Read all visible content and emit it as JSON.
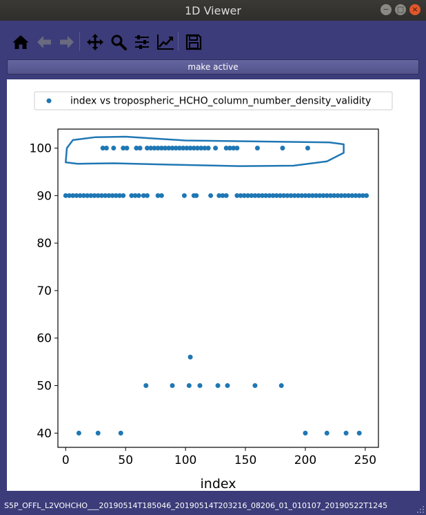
{
  "window": {
    "title": "1D Viewer",
    "minimize_glyph": "−",
    "maximize_glyph": "□",
    "close_glyph": "×"
  },
  "toolbar": {
    "items": [
      {
        "icon": "home-icon",
        "enabled": true
      },
      {
        "icon": "back-arrow-icon",
        "enabled": false
      },
      {
        "icon": "forward-arrow-icon",
        "enabled": false
      },
      {
        "icon": "pan-icon",
        "enabled": true
      },
      {
        "icon": "zoom-icon",
        "enabled": true
      },
      {
        "icon": "configure-subplots-icon",
        "enabled": true
      },
      {
        "icon": "edit-axes-icon",
        "enabled": true
      },
      {
        "icon": "save-icon",
        "enabled": true
      }
    ]
  },
  "make_active_label": "make active",
  "status_text": "S5P_OFFL_L2VOHCHO___20190514T185046_20190514T203216_08206_01_010107_20190522T1245",
  "colors": {
    "window_bg": "#3c3c7a",
    "marker": "#1f77b4",
    "titlebar": "#33322f",
    "close_button": "#e0572a"
  },
  "chart_data": {
    "type": "scatter",
    "legend": "index vs  tropospheric_HCHO_column_number_density_validity",
    "legend_position": "top-center",
    "xlabel": "index",
    "ylabel": "",
    "xlim": [
      -6.5,
      261
    ],
    "ylim": [
      37,
      104
    ],
    "xticks": [
      0,
      50,
      100,
      150,
      200,
      250
    ],
    "yticks": [
      40,
      50,
      60,
      70,
      80,
      90,
      100
    ],
    "grid": false,
    "annotation": "hand-drawn outline around the y=100 points",
    "annotation_outline": [
      [
        0,
        97
      ],
      [
        1,
        100
      ],
      [
        6,
        101.7
      ],
      [
        25,
        102.3
      ],
      [
        50,
        102.4
      ],
      [
        100,
        101.6
      ],
      [
        160,
        101.4
      ],
      [
        220,
        101.2
      ],
      [
        232,
        100.8
      ],
      [
        232,
        99
      ],
      [
        218,
        97.2
      ],
      [
        190,
        96.3
      ],
      [
        145,
        96.2
      ],
      [
        90,
        96.5
      ],
      [
        40,
        96.8
      ],
      [
        10,
        96.7
      ],
      [
        0,
        97
      ]
    ],
    "points": [
      {
        "x": 11,
        "y": 40
      },
      {
        "x": 27,
        "y": 40
      },
      {
        "x": 46,
        "y": 40
      },
      {
        "x": 200,
        "y": 40
      },
      {
        "x": 218,
        "y": 40
      },
      {
        "x": 234,
        "y": 40
      },
      {
        "x": 245,
        "y": 40
      },
      {
        "x": 67,
        "y": 50
      },
      {
        "x": 89,
        "y": 50
      },
      {
        "x": 103,
        "y": 50
      },
      {
        "x": 112,
        "y": 50
      },
      {
        "x": 127,
        "y": 50
      },
      {
        "x": 135,
        "y": 50
      },
      {
        "x": 158,
        "y": 50
      },
      {
        "x": 180,
        "y": 50
      },
      {
        "x": 104,
        "y": 56
      },
      {
        "x": 0,
        "y": 90
      },
      {
        "x": 3,
        "y": 90
      },
      {
        "x": 6,
        "y": 90
      },
      {
        "x": 9,
        "y": 90
      },
      {
        "x": 12,
        "y": 90
      },
      {
        "x": 15,
        "y": 90
      },
      {
        "x": 18,
        "y": 90
      },
      {
        "x": 21,
        "y": 90
      },
      {
        "x": 24,
        "y": 90
      },
      {
        "x": 27,
        "y": 90
      },
      {
        "x": 30,
        "y": 90
      },
      {
        "x": 33,
        "y": 90
      },
      {
        "x": 36,
        "y": 90
      },
      {
        "x": 39,
        "y": 90
      },
      {
        "x": 42,
        "y": 90
      },
      {
        "x": 45,
        "y": 90
      },
      {
        "x": 48,
        "y": 90
      },
      {
        "x": 55,
        "y": 90
      },
      {
        "x": 58,
        "y": 90
      },
      {
        "x": 61,
        "y": 90
      },
      {
        "x": 65,
        "y": 90
      },
      {
        "x": 68,
        "y": 90
      },
      {
        "x": 77,
        "y": 90
      },
      {
        "x": 80,
        "y": 90
      },
      {
        "x": 99,
        "y": 90
      },
      {
        "x": 107,
        "y": 90
      },
      {
        "x": 109,
        "y": 90
      },
      {
        "x": 121,
        "y": 90
      },
      {
        "x": 128,
        "y": 90
      },
      {
        "x": 131,
        "y": 90
      },
      {
        "x": 134,
        "y": 90
      },
      {
        "x": 143,
        "y": 90
      },
      {
        "x": 146,
        "y": 90
      },
      {
        "x": 149,
        "y": 90
      },
      {
        "x": 152,
        "y": 90
      },
      {
        "x": 155,
        "y": 90
      },
      {
        "x": 158,
        "y": 90
      },
      {
        "x": 161,
        "y": 90
      },
      {
        "x": 164,
        "y": 90
      },
      {
        "x": 167,
        "y": 90
      },
      {
        "x": 170,
        "y": 90
      },
      {
        "x": 173,
        "y": 90
      },
      {
        "x": 176,
        "y": 90
      },
      {
        "x": 179,
        "y": 90
      },
      {
        "x": 182,
        "y": 90
      },
      {
        "x": 185,
        "y": 90
      },
      {
        "x": 188,
        "y": 90
      },
      {
        "x": 191,
        "y": 90
      },
      {
        "x": 194,
        "y": 90
      },
      {
        "x": 197,
        "y": 90
      },
      {
        "x": 200,
        "y": 90
      },
      {
        "x": 203,
        "y": 90
      },
      {
        "x": 206,
        "y": 90
      },
      {
        "x": 209,
        "y": 90
      },
      {
        "x": 212,
        "y": 90
      },
      {
        "x": 215,
        "y": 90
      },
      {
        "x": 218,
        "y": 90
      },
      {
        "x": 221,
        "y": 90
      },
      {
        "x": 224,
        "y": 90
      },
      {
        "x": 227,
        "y": 90
      },
      {
        "x": 230,
        "y": 90
      },
      {
        "x": 233,
        "y": 90
      },
      {
        "x": 236,
        "y": 90
      },
      {
        "x": 239,
        "y": 90
      },
      {
        "x": 242,
        "y": 90
      },
      {
        "x": 245,
        "y": 90
      },
      {
        "x": 248,
        "y": 90
      },
      {
        "x": 251,
        "y": 90
      },
      {
        "x": 31,
        "y": 100
      },
      {
        "x": 34,
        "y": 100
      },
      {
        "x": 40,
        "y": 100
      },
      {
        "x": 48,
        "y": 100
      },
      {
        "x": 51,
        "y": 100
      },
      {
        "x": 59,
        "y": 100
      },
      {
        "x": 62,
        "y": 100
      },
      {
        "x": 68,
        "y": 100
      },
      {
        "x": 71,
        "y": 100
      },
      {
        "x": 74,
        "y": 100
      },
      {
        "x": 77,
        "y": 100
      },
      {
        "x": 80,
        "y": 100
      },
      {
        "x": 83,
        "y": 100
      },
      {
        "x": 86,
        "y": 100
      },
      {
        "x": 89,
        "y": 100
      },
      {
        "x": 92,
        "y": 100
      },
      {
        "x": 95,
        "y": 100
      },
      {
        "x": 98,
        "y": 100
      },
      {
        "x": 101,
        "y": 100
      },
      {
        "x": 104,
        "y": 100
      },
      {
        "x": 107,
        "y": 100
      },
      {
        "x": 110,
        "y": 100
      },
      {
        "x": 113,
        "y": 100
      },
      {
        "x": 116,
        "y": 100
      },
      {
        "x": 119,
        "y": 100
      },
      {
        "x": 125,
        "y": 100
      },
      {
        "x": 134,
        "y": 100
      },
      {
        "x": 137,
        "y": 100
      },
      {
        "x": 140,
        "y": 100
      },
      {
        "x": 143,
        "y": 100
      },
      {
        "x": 160,
        "y": 100
      },
      {
        "x": 181,
        "y": 100
      },
      {
        "x": 202,
        "y": 100
      }
    ]
  }
}
